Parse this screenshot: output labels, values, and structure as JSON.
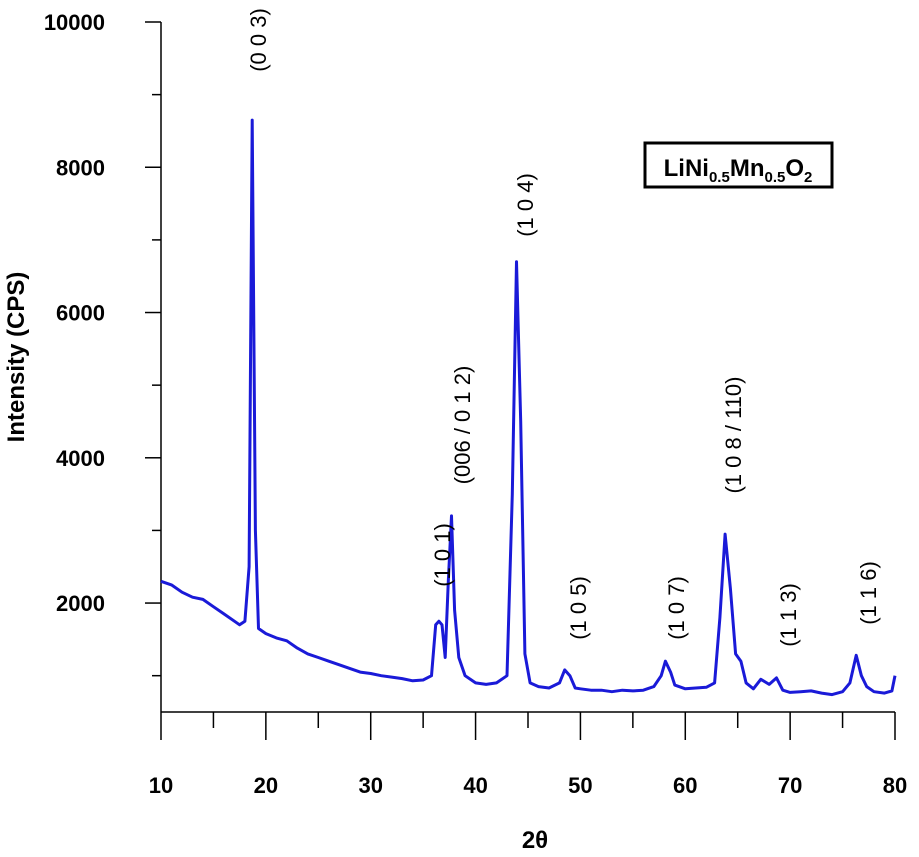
{
  "chart_data": {
    "type": "line",
    "x_label": "2θ",
    "y_label": "Intensity (CPS)",
    "xlim": [
      10,
      80
    ],
    "xticks": [
      10,
      20,
      30,
      40,
      50,
      60,
      70,
      80
    ],
    "xminorticks": [
      15,
      25,
      35,
      45,
      55,
      65,
      75
    ],
    "ylim": [
      500,
      10000
    ],
    "yticks": [
      2000,
      4000,
      6000,
      8000,
      10000
    ],
    "yminorticks": [
      1000,
      3000,
      5000,
      7000,
      9000
    ],
    "annotations": [
      "(0 0 3)",
      "(1 0 1)",
      "(006 / 0 1 2)",
      "(1 0 4)",
      "(1 0 5)",
      "(1 0 7)",
      "(1 0 8 / 110)",
      "(1 1 3)",
      "(1 1 6)"
    ],
    "series": [
      {
        "name": "LiNi0.5Mn0.5O2",
        "color": "#1a1ad8",
        "x": [
          10,
          11,
          12,
          13,
          14,
          15,
          16,
          17,
          17.5,
          18,
          18.4,
          18.7,
          19.0,
          19.3,
          20,
          21,
          22,
          23,
          24,
          25,
          26,
          27,
          28,
          29,
          30,
          31,
          32,
          33,
          34,
          35,
          35.8,
          36.2,
          36.5,
          36.8,
          37.1,
          37.4,
          37.7,
          38.0,
          38.4,
          39,
          40,
          41,
          42,
          43,
          43.5,
          43.9,
          44.3,
          44.7,
          45.2,
          46,
          47,
          48,
          48.5,
          49,
          49.5,
          50,
          51,
          52,
          53,
          54,
          55,
          56,
          57,
          57.7,
          58.1,
          58.6,
          59,
          60,
          61,
          62,
          62.8,
          63.3,
          63.8,
          64.3,
          64.8,
          65.3,
          65.8,
          66.5,
          67.2,
          68,
          68.7,
          69.3,
          70,
          71,
          72,
          73,
          74,
          75,
          75.7,
          76.3,
          76.8,
          77.3,
          78,
          79,
          79.7,
          80
        ],
        "values": [
          2300,
          2250,
          2150,
          2080,
          2050,
          1950,
          1850,
          1750,
          1700,
          1750,
          2500,
          8650,
          3000,
          1650,
          1580,
          1520,
          1480,
          1380,
          1300,
          1250,
          1200,
          1150,
          1100,
          1050,
          1030,
          1000,
          980,
          960,
          930,
          940,
          1000,
          1700,
          1750,
          1700,
          1250,
          2300,
          3200,
          1900,
          1250,
          1000,
          900,
          880,
          900,
          1000,
          3500,
          6700,
          4500,
          1300,
          900,
          850,
          830,
          900,
          1080,
          1000,
          830,
          820,
          800,
          800,
          780,
          800,
          790,
          800,
          850,
          1000,
          1200,
          1050,
          870,
          820,
          830,
          840,
          900,
          1800,
          2950,
          2200,
          1300,
          1200,
          900,
          820,
          950,
          880,
          970,
          800,
          770,
          780,
          790,
          760,
          740,
          780,
          900,
          1280,
          1000,
          850,
          780,
          760,
          790,
          1000
        ]
      }
    ]
  }
}
